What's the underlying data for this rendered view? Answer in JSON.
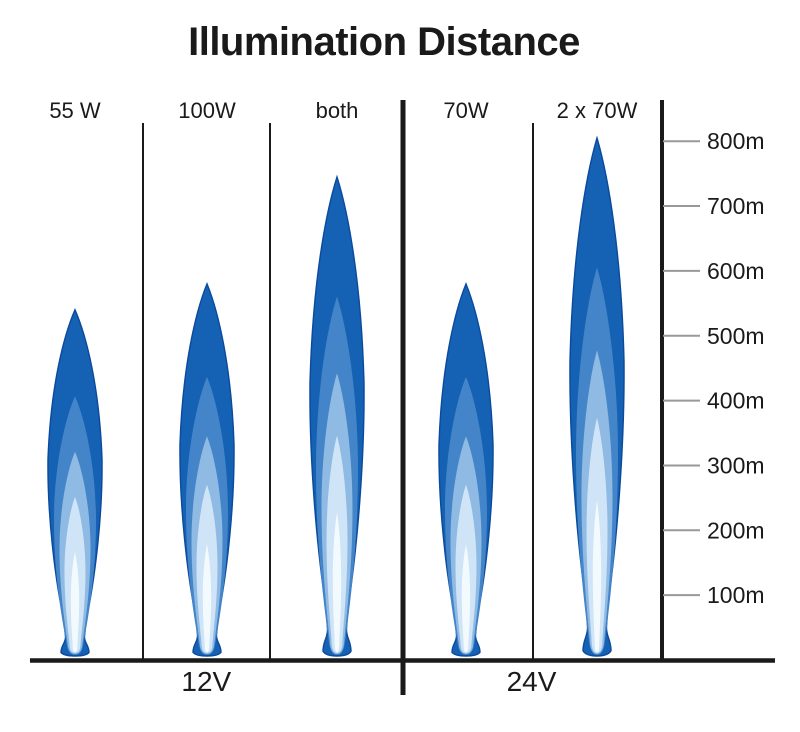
{
  "title": "Illumination Distance",
  "chart_data": {
    "type": "area",
    "title": "Illumination Distance",
    "description": "Stylized light-beam chart comparing illumination distance of headlamp bulbs on 12V and 24V systems",
    "unit": "m",
    "ylim": [
      0,
      860
    ],
    "yticks": [
      100,
      200,
      300,
      400,
      500,
      600,
      700,
      800
    ],
    "ytick_labels": [
      "100m",
      "200m",
      "300m",
      "400m",
      "500m",
      "600m",
      "700m",
      "800m"
    ],
    "grid": false,
    "legend_position": "none",
    "axis_side": "right",
    "groups": [
      {
        "label": "12V",
        "items": [
          {
            "label": "55 W",
            "distance_m": 540
          },
          {
            "label": "100W",
            "distance_m": 580
          },
          {
            "label": "both",
            "distance_m": 745
          }
        ]
      },
      {
        "label": "24V",
        "items": [
          {
            "label": "70W",
            "distance_m": 580
          },
          {
            "label": "2 x 70W",
            "distance_m": 805
          }
        ]
      }
    ],
    "colors": {
      "beam_layers": [
        "#1561b3",
        "#4385c8",
        "#8fbae3",
        "#cfe4f7",
        "#f3fafd"
      ],
      "beam_outline": "#0b4a9d",
      "axis_line": "#1a1a1a",
      "tick_line": "#999999",
      "text": "#1a1a1a"
    }
  }
}
